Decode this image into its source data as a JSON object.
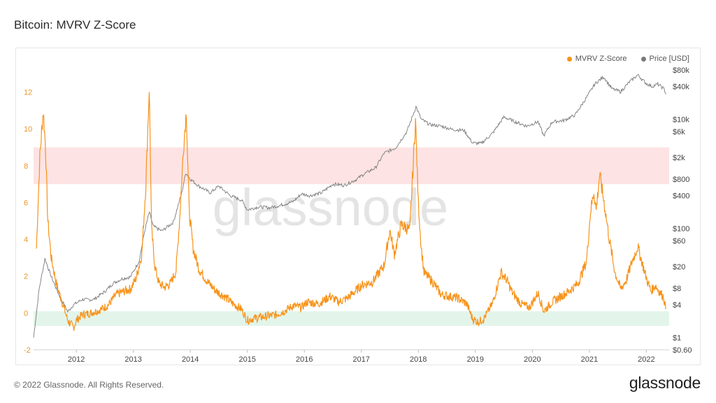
{
  "header": {
    "title": "Bitcoin: MVRV Z-Score"
  },
  "footer": {
    "copyright": "© 2022 Glassnode. All Rights Reserved.",
    "logo": "glassnode"
  },
  "watermark": "glassnode",
  "colors": {
    "mvrv": "#f7931a",
    "price": "#7a7a7a",
    "red_band": "#fde3e3",
    "green_band": "#e3f5ea",
    "left_axis": "#e8962a"
  },
  "chart_data": {
    "type": "line",
    "title": "Bitcoin: MVRV Z-Score",
    "legend": [
      "MVRV Z-Score",
      "Price [USD]"
    ],
    "legend_position": "top-right",
    "x_ticks": [
      "2012",
      "2013",
      "2014",
      "2015",
      "2016",
      "2017",
      "2018",
      "2019",
      "2020",
      "2021",
      "2022"
    ],
    "y_left": {
      "ticks": [
        "-2",
        "0",
        "2",
        "4",
        "6",
        "8",
        "10",
        "12"
      ],
      "range": [
        -2,
        13.2
      ]
    },
    "y_right": {
      "scale": "log",
      "range": [
        0.6,
        80000
      ],
      "ticks": [
        {
          "label": "$80k",
          "value": 80000
        },
        {
          "label": "$40k",
          "value": 40000
        },
        {
          "label": "$10k",
          "value": 10000
        },
        {
          "label": "$6k",
          "value": 6000
        },
        {
          "label": "$2k",
          "value": 2000
        },
        {
          "label": "$800",
          "value": 800
        },
        {
          "label": "$400",
          "value": 400
        },
        {
          "label": "$100",
          "value": 100
        },
        {
          "label": "$60",
          "value": 60
        },
        {
          "label": "$20",
          "value": 20
        },
        {
          "label": "$8",
          "value": 8
        },
        {
          "label": "$4",
          "value": 4
        },
        {
          "label": "$1",
          "value": 1
        },
        {
          "label": "$0.60",
          "value": 0.6
        }
      ]
    },
    "bands": [
      {
        "name": "red",
        "from": 7,
        "to": 9
      },
      {
        "name": "green",
        "from": -0.7,
        "to": 0.1
      }
    ],
    "series": [
      {
        "name": "MVRV Z-Score",
        "axis": "left",
        "points": [
          [
            2011.3,
            3.5
          ],
          [
            2011.36,
            8.5
          ],
          [
            2011.42,
            11.0
          ],
          [
            2011.46,
            9.0
          ],
          [
            2011.5,
            5.0
          ],
          [
            2011.56,
            3.0
          ],
          [
            2011.65,
            1.6
          ],
          [
            2011.75,
            0.6
          ],
          [
            2011.85,
            -0.4
          ],
          [
            2011.95,
            -0.8
          ],
          [
            2012.0,
            -0.4
          ],
          [
            2012.1,
            -0.1
          ],
          [
            2012.25,
            0.0
          ],
          [
            2012.4,
            0.15
          ],
          [
            2012.55,
            0.4
          ],
          [
            2012.7,
            1.0
          ],
          [
            2012.85,
            1.2
          ],
          [
            2012.95,
            1.3
          ],
          [
            2013.05,
            1.9
          ],
          [
            2013.15,
            3.2
          ],
          [
            2013.22,
            7.0
          ],
          [
            2013.28,
            12.3
          ],
          [
            2013.32,
            4.5
          ],
          [
            2013.38,
            2.5
          ],
          [
            2013.45,
            1.6
          ],
          [
            2013.55,
            1.4
          ],
          [
            2013.65,
            1.6
          ],
          [
            2013.75,
            2.3
          ],
          [
            2013.82,
            5.5
          ],
          [
            2013.88,
            9.0
          ],
          [
            2013.93,
            11.0
          ],
          [
            2013.98,
            5.5
          ],
          [
            2014.05,
            3.5
          ],
          [
            2014.15,
            2.4
          ],
          [
            2014.3,
            1.7
          ],
          [
            2014.45,
            1.2
          ],
          [
            2014.6,
            0.9
          ],
          [
            2014.75,
            0.5
          ],
          [
            2014.9,
            0.2
          ],
          [
            2015.0,
            -0.4
          ],
          [
            2015.1,
            -0.3
          ],
          [
            2015.3,
            -0.2
          ],
          [
            2015.5,
            -0.1
          ],
          [
            2015.65,
            0.1
          ],
          [
            2015.8,
            0.4
          ],
          [
            2015.95,
            0.3
          ],
          [
            2016.05,
            0.6
          ],
          [
            2016.25,
            0.5
          ],
          [
            2016.45,
            0.9
          ],
          [
            2016.6,
            0.6
          ],
          [
            2016.75,
            0.8
          ],
          [
            2016.9,
            1.2
          ],
          [
            2017.0,
            1.5
          ],
          [
            2017.2,
            1.7
          ],
          [
            2017.4,
            2.6
          ],
          [
            2017.5,
            4.5
          ],
          [
            2017.58,
            3.2
          ],
          [
            2017.7,
            4.8
          ],
          [
            2017.85,
            4.5
          ],
          [
            2017.95,
            10.5
          ],
          [
            2018.0,
            6.0
          ],
          [
            2018.05,
            3.6
          ],
          [
            2018.1,
            2.2
          ],
          [
            2018.25,
            1.7
          ],
          [
            2018.4,
            1.0
          ],
          [
            2018.55,
            0.9
          ],
          [
            2018.7,
            0.8
          ],
          [
            2018.85,
            0.5
          ],
          [
            2018.95,
            -0.3
          ],
          [
            2019.05,
            -0.5
          ],
          [
            2019.15,
            -0.3
          ],
          [
            2019.3,
            0.5
          ],
          [
            2019.45,
            2.2
          ],
          [
            2019.55,
            1.8
          ],
          [
            2019.65,
            1.1
          ],
          [
            2019.8,
            0.5
          ],
          [
            2019.95,
            0.3
          ],
          [
            2020.1,
            1.1
          ],
          [
            2020.2,
            0.1
          ],
          [
            2020.35,
            0.6
          ],
          [
            2020.5,
            0.9
          ],
          [
            2020.65,
            1.2
          ],
          [
            2020.8,
            1.6
          ],
          [
            2020.95,
            2.8
          ],
          [
            2021.02,
            5.5
          ],
          [
            2021.08,
            6.6
          ],
          [
            2021.12,
            5.6
          ],
          [
            2021.18,
            7.5
          ],
          [
            2021.25,
            6.2
          ],
          [
            2021.35,
            4.0
          ],
          [
            2021.45,
            2.2
          ],
          [
            2021.55,
            1.3
          ],
          [
            2021.65,
            1.8
          ],
          [
            2021.75,
            2.8
          ],
          [
            2021.85,
            3.6
          ],
          [
            2021.92,
            2.8
          ],
          [
            2022.0,
            1.9
          ],
          [
            2022.08,
            1.2
          ],
          [
            2022.16,
            1.5
          ],
          [
            2022.24,
            1.1
          ],
          [
            2022.3,
            0.9
          ],
          [
            2022.34,
            0.2
          ]
        ]
      },
      {
        "name": "Price [USD]",
        "axis": "right",
        "points": [
          [
            2011.25,
            1
          ],
          [
            2011.35,
            8
          ],
          [
            2011.45,
            28
          ],
          [
            2011.55,
            14
          ],
          [
            2011.7,
            6
          ],
          [
            2011.85,
            3
          ],
          [
            2011.95,
            4
          ],
          [
            2012.1,
            5
          ],
          [
            2012.3,
            5
          ],
          [
            2012.5,
            7
          ],
          [
            2012.65,
            10
          ],
          [
            2012.8,
            12
          ],
          [
            2012.95,
            13
          ],
          [
            2013.1,
            25
          ],
          [
            2013.2,
            90
          ],
          [
            2013.28,
            200
          ],
          [
            2013.35,
            110
          ],
          [
            2013.5,
            90
          ],
          [
            2013.7,
            130
          ],
          [
            2013.85,
            450
          ],
          [
            2013.92,
            1050
          ],
          [
            2014.0,
            800
          ],
          [
            2014.15,
            600
          ],
          [
            2014.35,
            450
          ],
          [
            2014.5,
            600
          ],
          [
            2014.7,
            400
          ],
          [
            2014.9,
            330
          ],
          [
            2015.0,
            220
          ],
          [
            2015.2,
            250
          ],
          [
            2015.4,
            240
          ],
          [
            2015.6,
            270
          ],
          [
            2015.8,
            310
          ],
          [
            2015.95,
            430
          ],
          [
            2016.1,
            400
          ],
          [
            2016.3,
            450
          ],
          [
            2016.5,
            650
          ],
          [
            2016.7,
            620
          ],
          [
            2016.9,
            780
          ],
          [
            2017.05,
            1000
          ],
          [
            2017.25,
            1300
          ],
          [
            2017.4,
            2400
          ],
          [
            2017.6,
            3000
          ],
          [
            2017.8,
            6000
          ],
          [
            2017.96,
            17000
          ],
          [
            2018.05,
            10000
          ],
          [
            2018.2,
            8000
          ],
          [
            2018.4,
            7500
          ],
          [
            2018.6,
            6500
          ],
          [
            2018.8,
            6300
          ],
          [
            2018.95,
            3700
          ],
          [
            2019.1,
            3600
          ],
          [
            2019.3,
            5500
          ],
          [
            2019.5,
            11000
          ],
          [
            2019.7,
            9000
          ],
          [
            2019.9,
            7500
          ],
          [
            2020.1,
            9000
          ],
          [
            2020.2,
            5000
          ],
          [
            2020.35,
            9000
          ],
          [
            2020.55,
            9500
          ],
          [
            2020.75,
            12000
          ],
          [
            2020.95,
            25000
          ],
          [
            2021.1,
            45000
          ],
          [
            2021.25,
            60000
          ],
          [
            2021.4,
            36000
          ],
          [
            2021.55,
            32000
          ],
          [
            2021.7,
            48000
          ],
          [
            2021.85,
            65000
          ],
          [
            2022.0,
            45000
          ],
          [
            2022.1,
            40000
          ],
          [
            2022.2,
            44000
          ],
          [
            2022.3,
            37000
          ],
          [
            2022.35,
            29000
          ]
        ]
      }
    ]
  }
}
